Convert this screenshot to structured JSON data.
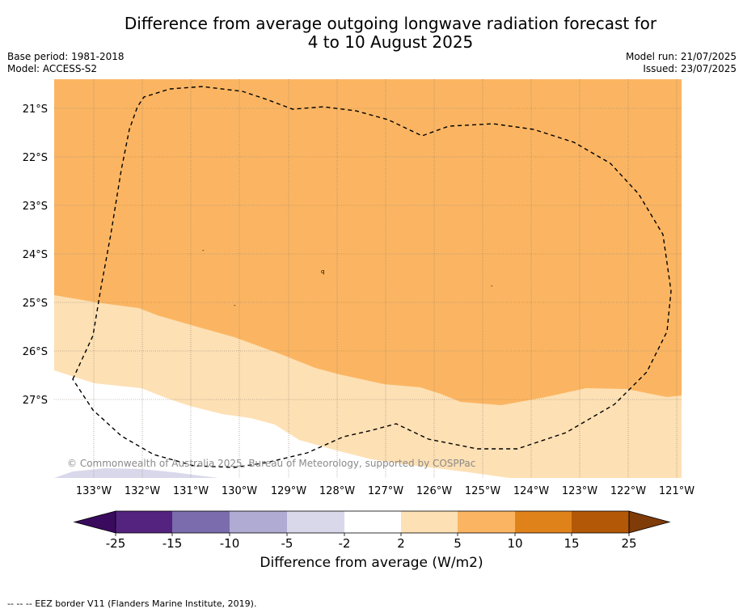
{
  "title_line1": "Difference from average outgoing longwave radiation forecast for",
  "title_line2": "4 to 10 August 2025",
  "meta_left": [
    "Base period: 1981-2018",
    "Model: ACCESS-S2"
  ],
  "meta_right": [
    "Model run: 21/07/2025",
    "Issued: 23/07/2025"
  ],
  "map": {
    "lat_labels": [
      "21°S",
      "22°S",
      "23°S",
      "24°S",
      "25°S",
      "26°S",
      "27°S"
    ],
    "lon_labels": [
      "133°W",
      "132°W",
      "131°W",
      "130°W",
      "129°W",
      "128°W",
      "127°W",
      "126°W",
      "125°W",
      "124°W",
      "123°W",
      "122°W",
      "121°W"
    ],
    "copyright": "© Commonwealth of Australia 2025, Bureau of Meteorology, supported by COSPPac",
    "fill_colors": {
      "5_to_10": "#fbb562",
      "2_to_5": "#fde0b4",
      "-2_to_2": "#ffffff",
      "-5_to_-2": "#d9d8eb"
    },
    "island_labels": [
      "q",
      "-",
      "-",
      "-"
    ]
  },
  "colorbar": {
    "ticks": [
      "-25",
      "-15",
      "-10",
      "-5",
      "-2",
      "2",
      "5",
      "10",
      "15",
      "25"
    ],
    "colors": [
      "#3a0a5e",
      "#53237f",
      "#7b6cad",
      "#b0abd2",
      "#d9d8eb",
      "#ffffff",
      "#fde0b4",
      "#fbb562",
      "#e0821a",
      "#b35806",
      "#7f3b08"
    ],
    "label": "Difference from average (W/m2)"
  },
  "footer": "--  --  -- EEZ border V11 (Flanders Marine Institute, 2019)."
}
